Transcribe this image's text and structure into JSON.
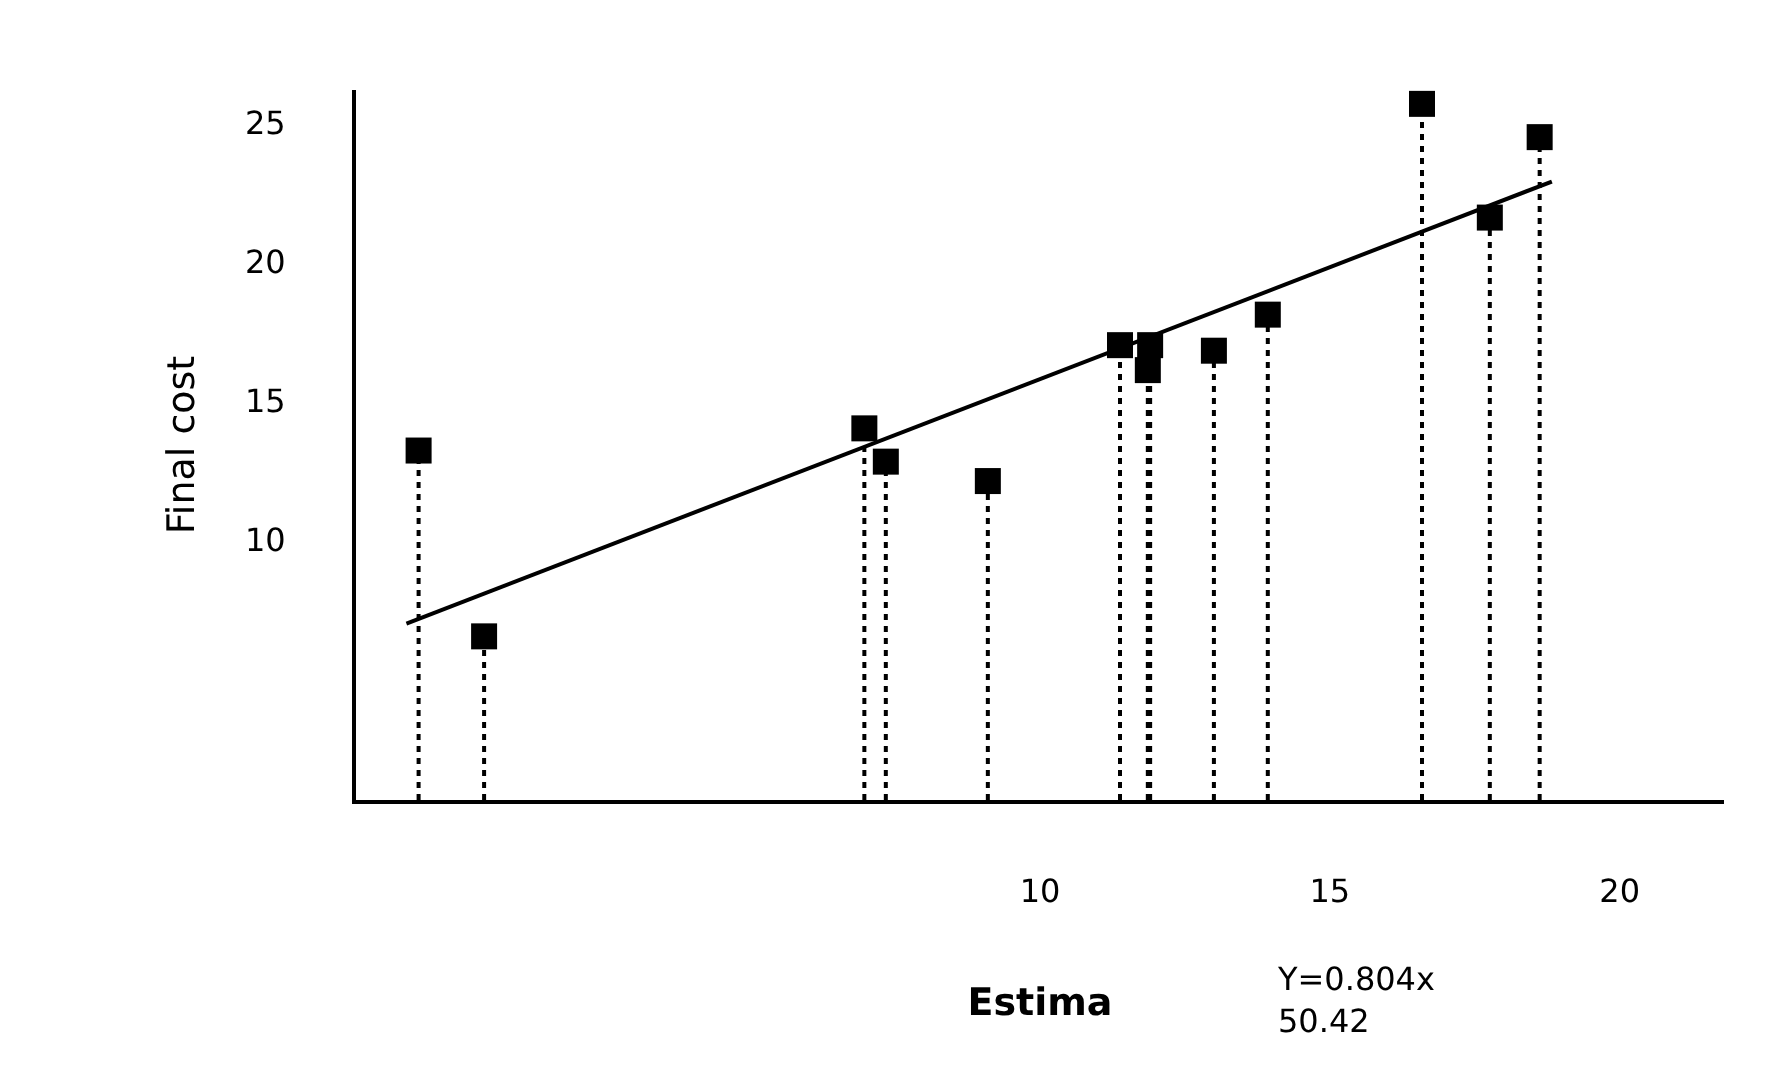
{
  "chart_data": {
    "type": "scatter",
    "xlabel": "Estima",
    "ylabel": "Final cost",
    "annotations": [
      "Y=0.804x\n50.42"
    ],
    "xlim": [
      -1.8,
      21.8
    ],
    "ylim": [
      0.6,
      26.2
    ],
    "xticks": [
      10,
      15,
      20
    ],
    "yticks": [
      10,
      15,
      20,
      25
    ],
    "marker": "square",
    "series": [
      {
        "color": "#000000",
        "x": [
          -0.72,
          0.41,
          6.97,
          7.34,
          9.1,
          11.38,
          11.9,
          11.86,
          13.0,
          13.93,
          16.59,
          17.76,
          18.62
        ],
        "values": [
          13.2,
          6.5,
          14.0,
          12.8,
          12.1,
          17.0,
          17.0,
          16.1,
          16.8,
          18.1,
          25.7,
          21.6,
          24.5
        ],
        "errors": [
          [
            0.6,
            13.2
          ],
          [
            0.6,
            6.5
          ],
          [
            0.6,
            14.0
          ],
          [
            0.6,
            12.8
          ],
          [
            0.6,
            12.1
          ],
          [
            0.6,
            17.0
          ],
          [
            0.6,
            17.0
          ],
          [
            0.6,
            16.1
          ],
          [
            0.6,
            16.8
          ],
          [
            0.6,
            18.1
          ],
          [
            0.6,
            25.7
          ],
          [
            0.6,
            21.6
          ],
          [
            0.6,
            24.5
          ]
        ]
      },
      {
        "type": "line",
        "color": "#000000",
        "x": [
          -0.93,
          18.83
        ],
        "values": [
          6.96,
          22.9
        ],
        "marker": "none",
        "line_style": "solid"
      }
    ]
  }
}
